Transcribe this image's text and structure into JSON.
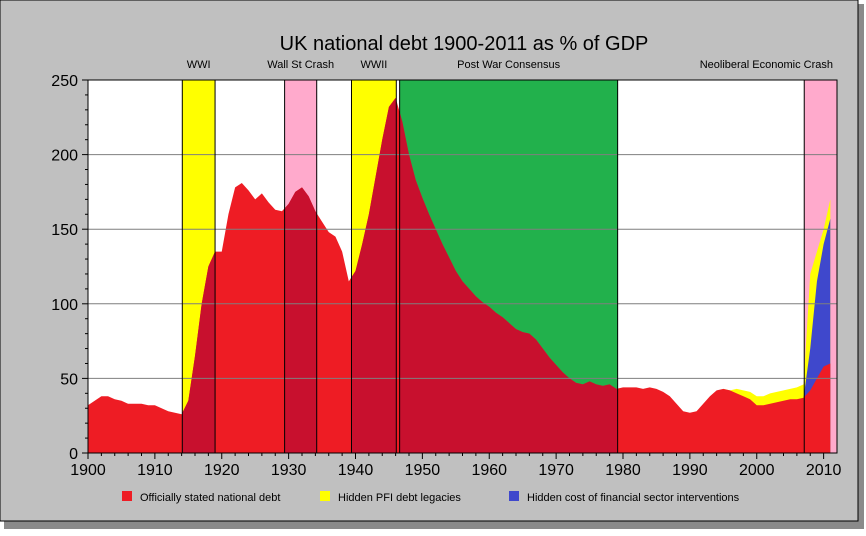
{
  "chart_data": {
    "type": "area",
    "title": "UK national debt 1900-2011 as % of GDP",
    "xlabel": "",
    "ylabel": "",
    "xlim": [
      1900,
      2012
    ],
    "ylim": [
      0,
      250
    ],
    "x_ticks": [
      1900,
      1910,
      1920,
      1930,
      1940,
      1950,
      1960,
      1970,
      1980,
      1990,
      2000,
      2010
    ],
    "y_ticks": [
      0,
      50,
      100,
      150,
      200,
      250
    ],
    "grid": true,
    "legend_position": "bottom",
    "periods": [
      {
        "label": "WWI",
        "start": 1914.1,
        "end": 1919.0,
        "color": "#ffff00"
      },
      {
        "label": "Wall St Crash",
        "start": 1929.4,
        "end": 1934.2,
        "color": "#ffaacc"
      },
      {
        "label": "WWII",
        "start": 1939.4,
        "end": 1946.1,
        "color": "#ffff00"
      },
      {
        "label": "Post War Consensus",
        "start": 1946.6,
        "end": 1979.2,
        "color": "#22b14c"
      },
      {
        "label": "Neoliberal Economic Crash",
        "start": 2007.1,
        "end": 2012.0,
        "color": "#ffaacc"
      }
    ],
    "series": [
      {
        "name": "Officially stated national debt",
        "color": "#ee1c24",
        "x": [
          1900,
          1901,
          1902,
          1903,
          1904,
          1905,
          1906,
          1907,
          1908,
          1909,
          1910,
          1911,
          1912,
          1913,
          1914,
          1915,
          1916,
          1917,
          1918,
          1919,
          1920,
          1921,
          1922,
          1923,
          1924,
          1925,
          1926,
          1927,
          1928,
          1929,
          1930,
          1931,
          1932,
          1933,
          1934,
          1935,
          1936,
          1937,
          1938,
          1939,
          1940,
          1941,
          1942,
          1943,
          1944,
          1945,
          1946,
          1947,
          1948,
          1949,
          1950,
          1951,
          1952,
          1953,
          1954,
          1955,
          1956,
          1957,
          1958,
          1959,
          1960,
          1961,
          1962,
          1963,
          1964,
          1965,
          1966,
          1967,
          1968,
          1969,
          1970,
          1971,
          1972,
          1973,
          1974,
          1975,
          1976,
          1977,
          1978,
          1979,
          1980,
          1981,
          1982,
          1983,
          1984,
          1985,
          1986,
          1987,
          1988,
          1989,
          1990,
          1991,
          1992,
          1993,
          1994,
          1995,
          1996,
          1997,
          1998,
          1999,
          2000,
          2001,
          2002,
          2003,
          2004,
          2005,
          2006,
          2007,
          2008,
          2009,
          2010,
          2011
        ],
        "values": [
          32,
          35,
          38,
          38,
          36,
          35,
          33,
          33,
          33,
          32,
          32,
          30,
          28,
          27,
          26,
          35,
          65,
          100,
          125,
          135,
          135,
          160,
          178,
          181,
          176,
          170,
          174,
          168,
          163,
          162,
          167,
          175,
          178,
          172,
          162,
          155,
          148,
          145,
          135,
          115,
          122,
          140,
          160,
          185,
          210,
          232,
          238,
          222,
          200,
          183,
          171,
          160,
          150,
          140,
          131,
          122,
          115,
          110,
          105,
          101,
          98,
          94,
          91,
          87,
          83,
          81,
          80,
          76,
          70,
          64,
          59,
          54,
          50,
          47,
          46,
          48,
          46,
          45,
          46,
          43,
          44,
          44,
          44,
          43,
          44,
          43,
          41,
          38,
          33,
          28,
          27,
          28,
          33,
          38,
          42,
          43,
          42,
          40,
          38,
          36,
          32,
          32,
          33,
          34,
          35,
          36,
          36,
          37,
          42,
          50,
          58,
          60
        ]
      },
      {
        "name": "Hidden PFI debt legacies",
        "color": "#ffff00",
        "x": [
          1995,
          1996,
          1997,
          1998,
          1999,
          2000,
          2001,
          2002,
          2003,
          2004,
          2005,
          2006,
          2007,
          2008,
          2009,
          2010,
          2011
        ],
        "values": [
          43,
          42,
          43,
          42,
          41,
          38,
          38,
          40,
          41,
          42,
          43,
          44,
          46,
          120,
          135,
          150,
          170
        ]
      },
      {
        "name": "Hidden cost of financial sector interventions",
        "color": "#3f48cc",
        "x": [
          2007,
          2008,
          2009,
          2010,
          2011
        ],
        "values": [
          37,
          70,
          115,
          140,
          157
        ]
      }
    ]
  }
}
